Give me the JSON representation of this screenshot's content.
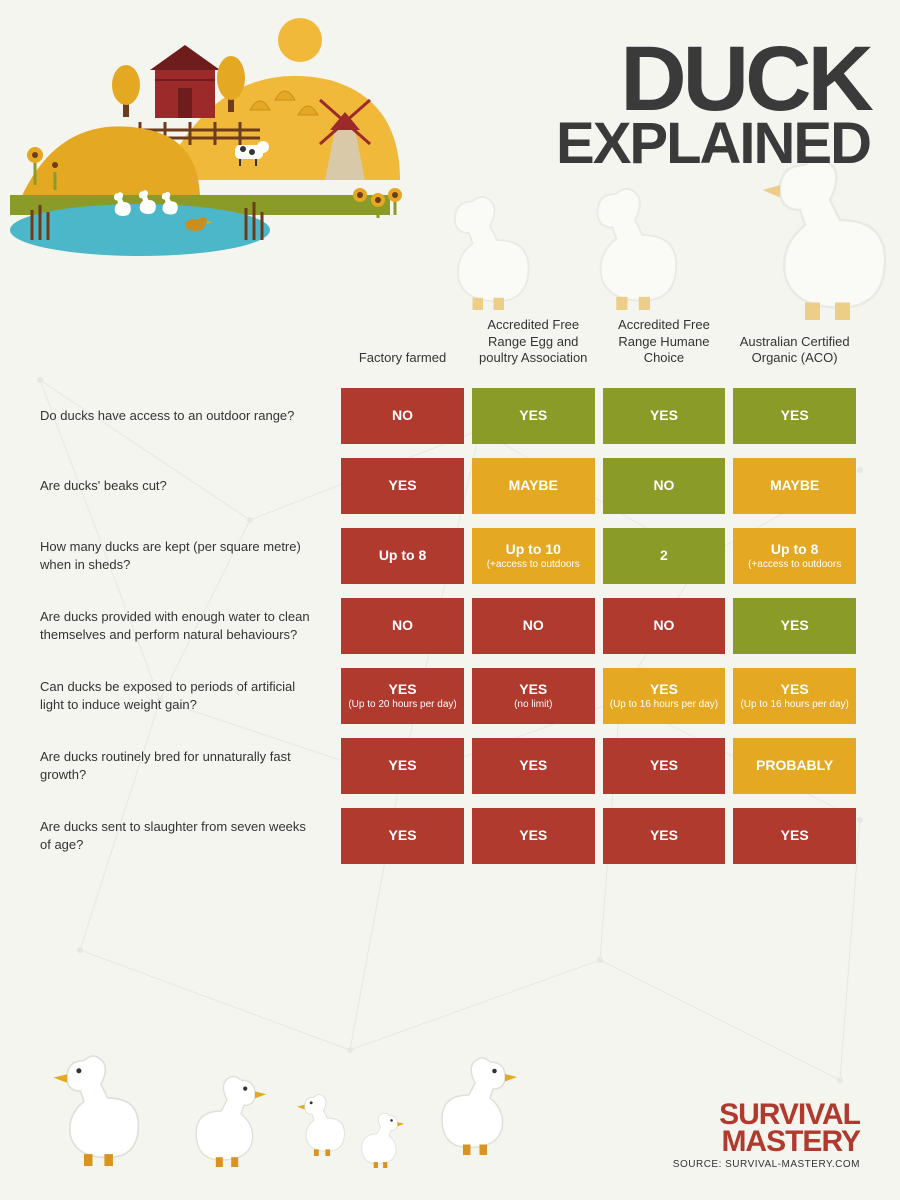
{
  "title": {
    "line1": "DUCK",
    "line2": "EXPLAINED",
    "color": "#3a3a3a"
  },
  "colors": {
    "red": "#b03a2e",
    "green": "#8a9b27",
    "yellow": "#e5a823",
    "bg": "#f5f5f0",
    "text": "#333333",
    "logo": "#b03a2e",
    "source": "#333333"
  },
  "columns": [
    "Factory farmed",
    "Accredited Free Range Egg and poultry Association",
    "Accredited Free Range Humane Choice",
    "Australian Certified Organic (ACO)"
  ],
  "rows": [
    {
      "q": "Do ducks have access to an outdoor range?",
      "cells": [
        {
          "main": "NO",
          "sub": "",
          "bg": "red"
        },
        {
          "main": "YES",
          "sub": "",
          "bg": "green"
        },
        {
          "main": "YES",
          "sub": "",
          "bg": "green"
        },
        {
          "main": "YES",
          "sub": "",
          "bg": "green"
        }
      ]
    },
    {
      "q": "Are ducks' beaks cut?",
      "cells": [
        {
          "main": "YES",
          "sub": "",
          "bg": "red"
        },
        {
          "main": "MAYBE",
          "sub": "",
          "bg": "yellow"
        },
        {
          "main": "NO",
          "sub": "",
          "bg": "green"
        },
        {
          "main": "MAYBE",
          "sub": "",
          "bg": "yellow"
        }
      ]
    },
    {
      "q": "How many ducks are kept (per square metre) when in sheds?",
      "cells": [
        {
          "main": "Up to 8",
          "sub": "",
          "bg": "red"
        },
        {
          "main": "Up to 10",
          "sub": "(+access to outdoors",
          "bg": "yellow"
        },
        {
          "main": "2",
          "sub": "",
          "bg": "green"
        },
        {
          "main": "Up to 8",
          "sub": "(+access to outdoors",
          "bg": "yellow"
        }
      ]
    },
    {
      "q": "Are ducks provided with enough water to clean themselves and perform natural behaviours?",
      "cells": [
        {
          "main": "NO",
          "sub": "",
          "bg": "red"
        },
        {
          "main": "NO",
          "sub": "",
          "bg": "red"
        },
        {
          "main": "NO",
          "sub": "",
          "bg": "red"
        },
        {
          "main": "YES",
          "sub": "",
          "bg": "green"
        }
      ]
    },
    {
      "q": "Can ducks be exposed to periods of artificial light to induce weight gain?",
      "cells": [
        {
          "main": "YES",
          "sub": "(Up to 20 hours per day)",
          "bg": "red"
        },
        {
          "main": "YES",
          "sub": "(no limit)",
          "bg": "red"
        },
        {
          "main": "YES",
          "sub": "(Up to 16 hours per day)",
          "bg": "yellow"
        },
        {
          "main": "YES",
          "sub": "(Up to 16 hours per day)",
          "bg": "yellow"
        }
      ]
    },
    {
      "q": "Are ducks routinely bred for unnaturally fast growth?",
      "cells": [
        {
          "main": "YES",
          "sub": "",
          "bg": "red"
        },
        {
          "main": "YES",
          "sub": "",
          "bg": "red"
        },
        {
          "main": "YES",
          "sub": "",
          "bg": "red"
        },
        {
          "main": "PROBABLY",
          "sub": "",
          "bg": "yellow"
        }
      ]
    },
    {
      "q": "Are ducks sent to slaughter from seven weeks of age?",
      "cells": [
        {
          "main": "YES",
          "sub": "",
          "bg": "red"
        },
        {
          "main": "YES",
          "sub": "",
          "bg": "red"
        },
        {
          "main": "YES",
          "sub": "",
          "bg": "red"
        },
        {
          "main": "YES",
          "sub": "",
          "bg": "red"
        }
      ]
    }
  ],
  "footer": {
    "logo_line1": "SURVIVAL",
    "logo_line2": "MASTERY",
    "source": "SOURCE: SURVIVAL-MASTERY.COM"
  },
  "farm": {
    "hill1": "#e5a823",
    "hill2": "#f0b93a",
    "barn_body": "#9c2a2a",
    "barn_roof": "#6e1c1c",
    "sun": "#f0b93a",
    "tree_green": "#e5a823",
    "tree_trunk": "#6e3b1c",
    "water": "#4bb7c9",
    "grass": "#8a9b27",
    "cow": "#ffffff",
    "windmill_body": "#d8c9a8",
    "windmill_roof": "#9c2a2a",
    "flower": "#e5a823",
    "goose": "#ffffff",
    "goose_beak": "#e5a823",
    "goose_feet": "#d9931e"
  }
}
